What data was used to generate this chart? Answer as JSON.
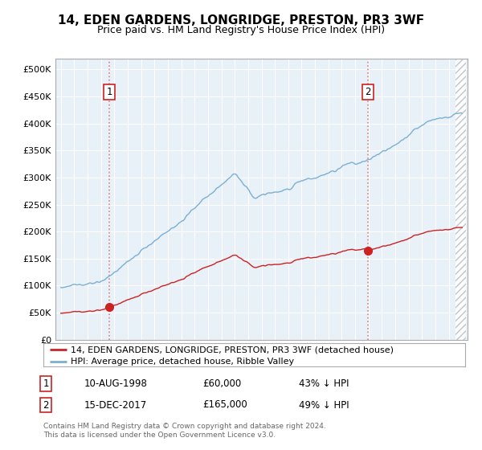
{
  "title": "14, EDEN GARDENS, LONGRIDGE, PRESTON, PR3 3WF",
  "subtitle": "Price paid vs. HM Land Registry's House Price Index (HPI)",
  "legend_line1": "14, EDEN GARDENS, LONGRIDGE, PRESTON, PR3 3WF (detached house)",
  "legend_line2": "HPI: Average price, detached house, Ribble Valley",
  "transaction1_date": "10-AUG-1998",
  "transaction1_price": 60000,
  "transaction1_label": "43% ↓ HPI",
  "transaction2_date": "15-DEC-2017",
  "transaction2_price": 165000,
  "transaction2_label": "49% ↓ HPI",
  "footnote1": "Contains HM Land Registry data © Crown copyright and database right 2024.",
  "footnote2": "This data is licensed under the Open Government Licence v3.0.",
  "hpi_color": "#7ab0d4",
  "price_color": "#cc2222",
  "vline_color": "#e08080",
  "bg_color": "#e8f0f8",
  "grid_color": "#ffffff",
  "ylim_max": 520000,
  "yticks": [
    0,
    50000,
    100000,
    150000,
    200000,
    250000,
    300000,
    350000,
    400000,
    450000,
    500000
  ],
  "t1_year": 1998.625,
  "t2_year": 2017.958,
  "price1": 60000,
  "price2": 165000
}
